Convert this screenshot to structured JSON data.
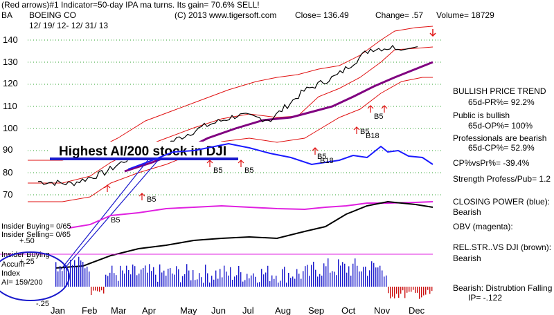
{
  "header": {
    "line1": "(Red arrows)#1 Indicator=50-day IPA ma turns. Its gain= 70.6% SELL!",
    "ticker": "BA",
    "company": "BOEING CO",
    "copyright": "(C) 2013 www.tigersoft.com",
    "close": "Close= 136.49",
    "change": "Change= .57",
    "volume": "Volume= 18729",
    "date_range": "12/ 19/ 12- 12/ 31/ 13"
  },
  "price_axis": [
    "140",
    "130",
    "120",
    "110",
    "100",
    "90",
    "80",
    "70"
  ],
  "months": [
    "Jan",
    "Feb",
    "Mar",
    "Apr",
    "May",
    "Jun",
    "Jul",
    "Aug",
    "Sep",
    "Oct",
    "Nov",
    "Dec"
  ],
  "callout": "Highest AI/200 stock in DJI",
  "signals": [
    "B5",
    "B5",
    "B5",
    "B5",
    "B5",
    "B5",
    "B18",
    "B5",
    "B18"
  ],
  "lower_labels": {
    "insider_buying": "Insider Buying= 0/65",
    "insider_selling": "Insider Selling= 0/65",
    "p50": "+.50",
    "insider_buying2": "Insider Buying",
    "accum": "Accum",
    "p25": "+.25",
    "index": "Index",
    "ai": "AI= 159/200",
    "m25": "-.25"
  },
  "side_panel": {
    "trend_title": "BULLISH PRICE TREND",
    "pr": "65d-PR%= 92.2%",
    "public": "Public is bullish",
    "op": "65d-OP%= 100%",
    "prof": "Professionals are bearish",
    "cp": "65d-CP%= 52.9%",
    "cpvspr": "CP%vsPr%= -39.4%",
    "strength": "Strength Profess/Pub= 1.2",
    "closing_power": "CLOSING POWER (blue):",
    "cp_state": "Bearish",
    "obv": "OBV (magenta):",
    "relstr": "REL.STR..VS DJI (brown):",
    "rel_state": "Bearish",
    "bearish_dist": "Bearish: Distrubtion Falling",
    "ip": "IP= -.122"
  },
  "chart_data": {
    "type": "line",
    "title": "BOEING CO",
    "ylim": [
      65,
      148
    ],
    "x": [
      "Jan",
      "Feb",
      "Mar",
      "Apr",
      "May",
      "Jun",
      "Jul",
      "Aug",
      "Sep",
      "Oct",
      "Nov",
      "Dec"
    ],
    "series": [
      {
        "name": "Close",
        "values": [
          76,
          75,
          80,
          89,
          94,
          101,
          106,
          104,
          117,
          124,
          136,
          137
        ]
      }
    ]
  },
  "colors": {
    "price": "#000000",
    "band": "#e01010",
    "ma": "#800080",
    "closing_power": "#1a1aff",
    "obv": "#e020e0",
    "relstr": "#000000",
    "accum_pos": "#1a1acc",
    "accum_neg": "#cc1010",
    "grid": "#2aa02a",
    "callout_ring": "#1a1acc"
  }
}
